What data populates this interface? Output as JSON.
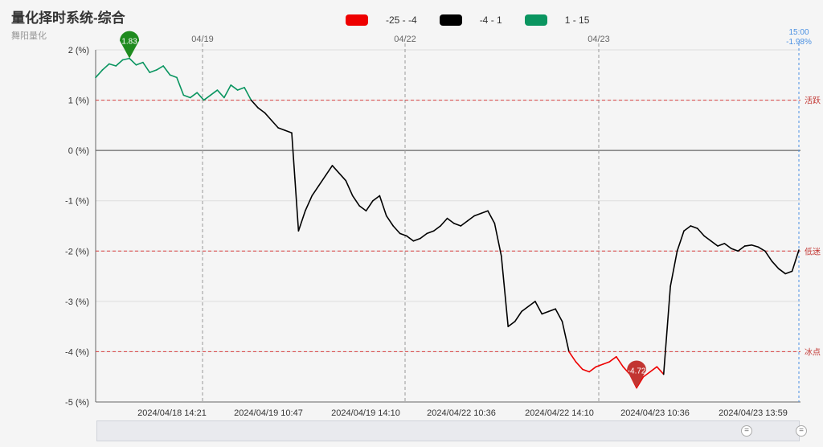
{
  "header": {
    "title": "量化择时系统-综合",
    "subtitle": "舞阳量化"
  },
  "legend": [
    {
      "label": "-25 - -4",
      "color": "#ee0000"
    },
    {
      "label": "-4 - 1",
      "color": "#000000"
    },
    {
      "label": "1 - 15",
      "color": "#0a9560"
    }
  ],
  "chart_data": {
    "type": "line",
    "title": "量化择时系统-综合",
    "subtitle": "舞阳量化",
    "ylim": [
      -5,
      2
    ],
    "y_ticks": [
      "2 (%)",
      "1 (%)",
      "0 (%)",
      "-1 (%)",
      "-2 (%)",
      "-3 (%)",
      "-4 (%)",
      "-5 (%)"
    ],
    "x_tick_labels": [
      "2024/04/18 14:21",
      "2024/04/19 10:47",
      "2024/04/19 14:10",
      "2024/04/22 10:36",
      "2024/04/22 14:10",
      "2024/04/23 10:36",
      "2024/04/23 13:59"
    ],
    "day_labels": [
      "04/19",
      "04/22",
      "04/23"
    ],
    "reference_lines": [
      {
        "value": 1,
        "label": "活跃"
      },
      {
        "value": -2,
        "label": "低迷"
      },
      {
        "value": -4,
        "label": "冰点"
      }
    ],
    "end_label": {
      "time": "15:00",
      "value": "-1.98%"
    },
    "markers": [
      {
        "label": "1.83",
        "value": 1.83,
        "type": "max",
        "color": "#1f8b1f"
      },
      {
        "label": "-4.72",
        "value": -4.72,
        "type": "min",
        "color": "#c23531"
      }
    ],
    "visual_map": [
      {
        "range": [
          -25,
          -4
        ],
        "color": "#ee0000"
      },
      {
        "range": [
          -4,
          1
        ],
        "color": "#000000"
      },
      {
        "range": [
          1,
          15
        ],
        "color": "#0a9560"
      }
    ],
    "series": [
      {
        "values": [
          1.45,
          1.6,
          1.72,
          1.68,
          1.8,
          1.83,
          1.7,
          1.75,
          1.55,
          1.6,
          1.68,
          1.5,
          1.45,
          1.1,
          1.05,
          1.15,
          1.0,
          1.1,
          1.2,
          1.05,
          1.3,
          1.2,
          1.25,
          1.0,
          0.85,
          0.75,
          0.6,
          0.45,
          0.4,
          0.35,
          -1.6,
          -1.2,
          -0.9,
          -0.7,
          -0.5,
          -0.3,
          -0.45,
          -0.6,
          -0.9,
          -1.1,
          -1.2,
          -1.0,
          -0.9,
          -1.3,
          -1.5,
          -1.65,
          -1.7,
          -1.8,
          -1.75,
          -1.65,
          -1.6,
          -1.5,
          -1.35,
          -1.45,
          -1.5,
          -1.4,
          -1.3,
          -1.25,
          -1.2,
          -1.45,
          -2.1,
          -3.5,
          -3.4,
          -3.2,
          -3.1,
          -3.0,
          -3.25,
          -3.2,
          -3.15,
          -3.4,
          -4.0,
          -4.2,
          -4.35,
          -4.4,
          -4.3,
          -4.25,
          -4.2,
          -4.1,
          -4.3,
          -4.45,
          -4.72,
          -4.5,
          -4.4,
          -4.3,
          -4.45,
          -2.7,
          -2.0,
          -1.6,
          -1.5,
          -1.55,
          -1.7,
          -1.8,
          -1.9,
          -1.85,
          -1.95,
          -2.0,
          -1.9,
          -1.88,
          -1.92,
          -2.0,
          -2.2,
          -2.35,
          -2.45,
          -2.4,
          -1.98
        ]
      }
    ]
  },
  "zoom": {
    "handle_glyph": "="
  }
}
